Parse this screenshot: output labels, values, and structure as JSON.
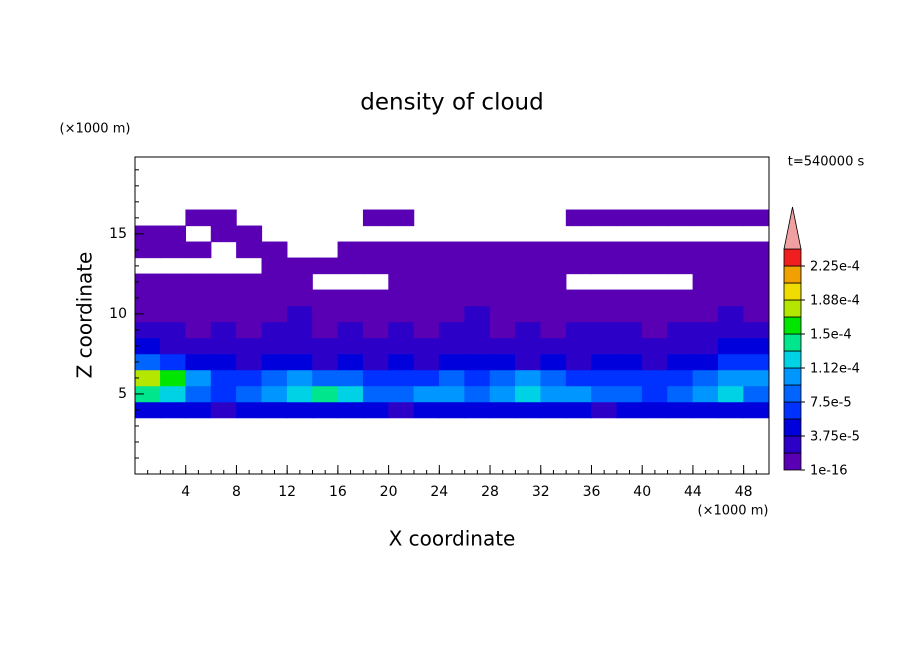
{
  "chart_data": {
    "type": "contour",
    "title": "density of cloud",
    "x_label": "X coordinate",
    "y_label": "Z coordinate",
    "x_unit": "(×1000 m)",
    "y_unit": "(×1000 m)",
    "time_label": "t=540000 s",
    "xlim": [
      0,
      50
    ],
    "ylim": [
      0,
      19.8
    ],
    "xticks": [
      4,
      8,
      12,
      16,
      20,
      24,
      28,
      32,
      36,
      40,
      44,
      48
    ],
    "yticks": [
      5,
      10,
      15
    ],
    "x": [
      1,
      3,
      5,
      7,
      9,
      11,
      13,
      15,
      17,
      19,
      21,
      23,
      25,
      27,
      29,
      31,
      33,
      35,
      37,
      39,
      41,
      43,
      45,
      47,
      49
    ],
    "y": [
      4,
      5,
      6,
      7,
      8,
      9,
      10,
      11,
      12,
      13,
      14,
      15,
      16
    ],
    "values": [
      [
        4e-05,
        5e-05,
        4e-05,
        3e-05,
        4e-05,
        5e-05,
        4e-05,
        5e-05,
        4e-05,
        4e-05,
        3e-05,
        4e-05,
        5e-05,
        4e-05,
        4e-05,
        5e-05,
        4e-05,
        4e-05,
        3e-05,
        4e-05,
        5e-05,
        4e-05,
        4e-05,
        5e-05,
        4e-05
      ],
      [
        0.00014,
        0.00013,
        9e-05,
        7e-05,
        8e-05,
        0.0001,
        0.00013,
        0.00014,
        0.00012,
        9e-05,
        8e-05,
        0.0001,
        0.00011,
        9e-05,
        0.00011,
        0.00012,
        0.0001,
        0.00011,
        9e-05,
        8e-05,
        7e-05,
        9e-05,
        0.00011,
        0.00012,
        9e-05
      ],
      [
        0.00018,
        0.00016,
        0.0001,
        7e-05,
        6e-05,
        8e-05,
        0.0001,
        9e-05,
        8e-05,
        6e-05,
        7e-05,
        6e-05,
        8e-05,
        7e-05,
        9e-05,
        0.0001,
        8e-05,
        7e-05,
        6e-05,
        7e-05,
        6e-05,
        7e-05,
        9e-05,
        0.00011,
        0.0001
      ],
      [
        9e-05,
        6e-05,
        5e-05,
        4e-05,
        3e-05,
        5e-05,
        4e-05,
        3e-05,
        4e-05,
        3e-05,
        4e-05,
        3e-05,
        4e-05,
        5e-05,
        4e-05,
        3e-05,
        4e-05,
        3e-05,
        5e-05,
        4e-05,
        3e-05,
        4e-05,
        5e-05,
        7e-05,
        6e-05
      ],
      [
        4e-05,
        3e-05,
        3e-05,
        2e-05,
        3e-05,
        2e-05,
        3e-05,
        2e-05,
        3e-05,
        2e-05,
        3e-05,
        2e-05,
        3e-05,
        3e-05,
        2e-05,
        3e-05,
        2e-05,
        3e-05,
        3e-05,
        2e-05,
        3e-05,
        3e-05,
        3e-05,
        4e-05,
        4e-05
      ],
      [
        2e-05,
        2e-05,
        1e-05,
        2e-05,
        1e-05,
        2e-05,
        2e-05,
        1e-05,
        2e-05,
        1e-05,
        2e-05,
        1e-05,
        2e-05,
        2e-05,
        1e-05,
        2e-05,
        1e-05,
        2e-05,
        2e-05,
        2e-05,
        1e-05,
        2e-05,
        2e-05,
        2e-05,
        2e-05
      ],
      [
        1e-05,
        1e-05,
        1e-05,
        1e-05,
        1e-05,
        1e-05,
        2e-05,
        1e-05,
        1e-05,
        1e-05,
        1e-05,
        1e-05,
        1e-05,
        2e-05,
        1e-05,
        1e-05,
        1e-05,
        1e-05,
        1e-05,
        1e-05,
        1e-05,
        1e-05,
        1e-05,
        2e-05,
        1e-05
      ],
      [
        1e-05,
        1e-05,
        1e-05,
        1e-05,
        1e-05,
        1e-05,
        1e-05,
        1e-05,
        1e-05,
        1e-05,
        1e-05,
        1e-05,
        1e-05,
        1e-05,
        1e-05,
        1e-05,
        1e-05,
        1e-05,
        1e-05,
        1e-05,
        1e-05,
        1e-05,
        1e-05,
        1e-05,
        1e-05
      ],
      [
        1e-05,
        1e-05,
        1e-05,
        1e-05,
        1e-05,
        1e-05,
        1e-05,
        null,
        null,
        null,
        1e-05,
        1e-05,
        1e-05,
        1e-05,
        1e-05,
        1e-05,
        1e-05,
        null,
        null,
        null,
        null,
        null,
        1e-05,
        1e-05,
        1e-05
      ],
      [
        null,
        null,
        null,
        null,
        null,
        1e-05,
        1e-05,
        1e-05,
        1e-05,
        1e-05,
        1e-05,
        1e-05,
        1e-05,
        1e-05,
        1e-05,
        1e-05,
        1e-05,
        1e-05,
        1e-05,
        1e-05,
        1e-05,
        1e-05,
        1e-05,
        1e-05,
        1e-05
      ],
      [
        1e-05,
        1e-05,
        1e-05,
        null,
        1e-05,
        1e-05,
        null,
        null,
        1e-05,
        1e-05,
        1e-05,
        1e-05,
        1e-05,
        1e-05,
        1e-05,
        1e-05,
        1e-05,
        1e-05,
        1e-05,
        1e-05,
        1e-05,
        1e-05,
        1e-05,
        1e-05,
        1e-05
      ],
      [
        1e-05,
        1e-05,
        null,
        1e-05,
        1e-05,
        null,
        null,
        null,
        null,
        null,
        null,
        null,
        null,
        null,
        null,
        null,
        null,
        null,
        null,
        null,
        null,
        null,
        null,
        null,
        null
      ],
      [
        null,
        null,
        1e-05,
        1e-05,
        null,
        null,
        null,
        null,
        null,
        1e-05,
        1e-05,
        null,
        null,
        null,
        null,
        null,
        null,
        1e-05,
        1e-05,
        1e-05,
        1e-05,
        1e-05,
        1e-05,
        1e-05,
        1e-05
      ]
    ],
    "levels": [
      1e-16,
      1.875e-05,
      3.75e-05,
      5.625e-05,
      7.5e-05,
      9.375e-05,
      0.0001125,
      0.00013125,
      0.00015,
      0.00016875,
      0.0001875,
      0.00020625,
      0.000225,
      0.00024375
    ],
    "colors": [
      "#5a00b4",
      "#2d00c8",
      "#0000dc",
      "#0032ff",
      "#0064ff",
      "#0096ff",
      "#00d2e6",
      "#00e68c",
      "#00e600",
      "#b4e600",
      "#f0dc00",
      "#f0a000",
      "#f01e1e"
    ],
    "extend_color": "#f0a0a0",
    "colorbar_ticks": [
      {
        "value": 1e-16,
        "label": "1e-16"
      },
      {
        "value": 3.75e-05,
        "label": "3.75e-5"
      },
      {
        "value": 7.5e-05,
        "label": "7.5e-5"
      },
      {
        "value": 0.0001125,
        "label": "1.12e-4"
      },
      {
        "value": 0.00015,
        "label": "1.5e-4"
      },
      {
        "value": 0.0001875,
        "label": "1.88e-4"
      },
      {
        "value": 0.000225,
        "label": "2.25e-4"
      }
    ]
  }
}
